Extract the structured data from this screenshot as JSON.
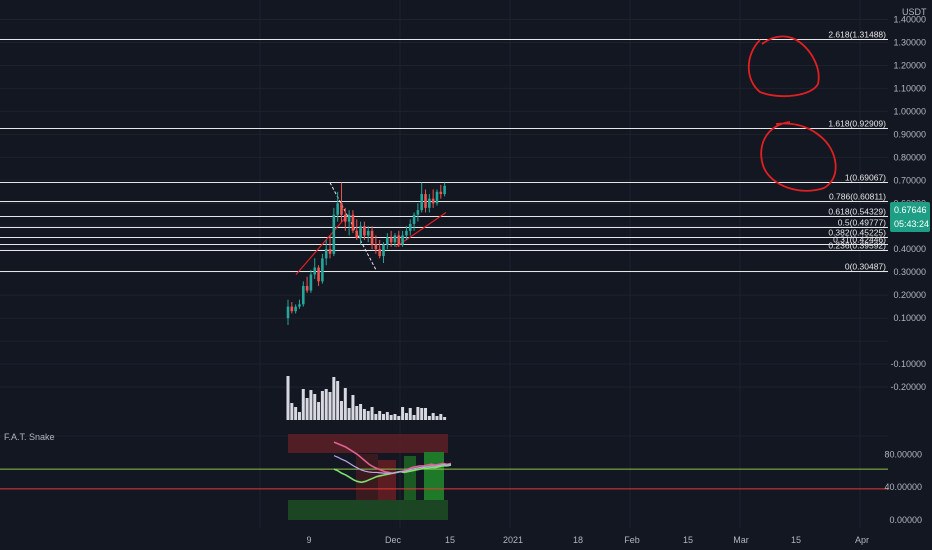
{
  "colors": {
    "background": "#131722",
    "grid": "#1e222d",
    "text": "#b2b5be",
    "fib_line": "#e6e6e6",
    "candle_up": "#26a69a",
    "candle_down": "#ef5350",
    "volume": "#d8d8e0",
    "price_tag": "#1f9e86",
    "annotation": "#e02020",
    "snake_top_zone": "#5a1f26",
    "snake_bottom_zone": "#1d4a24",
    "level_green": "#8bc34a",
    "level_red": "#e53935"
  },
  "header": {
    "currency": "USDT"
  },
  "price_axis": {
    "labels": [
      "1.40000",
      "1.30000",
      "1.20000",
      "1.10000",
      "1.00000",
      "0.90000",
      "0.80000",
      "0.70000",
      "0.60000",
      "0.50000",
      "0.40000",
      "0.30000",
      "0.20000",
      "0.10000",
      "-0.10000",
      "-0.20000"
    ]
  },
  "price_tag": {
    "price": "0.67646",
    "countdown": "05:43:24"
  },
  "fib_levels": [
    {
      "label": "2.618(1.31488)",
      "price": 1.31488
    },
    {
      "label": "1.618(0.92909)",
      "price": 0.92909
    },
    {
      "label": "1(0.69067)",
      "price": 0.69067
    },
    {
      "label": "0.786(0.60811)",
      "price": 0.60811
    },
    {
      "label": "0.618(0.54329)",
      "price": 0.54329
    },
    {
      "label": "0.5(0.49777)",
      "price": 0.49777
    },
    {
      "label": "0.382(0.45225)",
      "price": 0.45225
    },
    {
      "label": "0.31(0.42446)",
      "price": 0.42446
    },
    {
      "label": "0.236(0.39592)",
      "price": 0.39592
    },
    {
      "label": "0(0.30487)",
      "price": 0.30487
    }
  ],
  "indicator": {
    "name": "F.A.T. Snake",
    "axis_labels": [
      "80.00000",
      "40.00000",
      "0.00000"
    ],
    "levels": [
      {
        "value": 62,
        "color": "green"
      },
      {
        "value": 38,
        "color": "red"
      }
    ]
  },
  "time_axis": {
    "labels": [
      "9",
      "Dec",
      "15",
      "2021",
      "18",
      "Feb",
      "15",
      "Mar",
      "15",
      "Apr"
    ]
  },
  "chart_data": {
    "type": "candlestick",
    "price_unit": "USDT",
    "candles": [
      [
        0.1,
        0.18,
        0.07,
        0.15
      ],
      [
        0.15,
        0.17,
        0.12,
        0.13
      ],
      [
        0.13,
        0.16,
        0.12,
        0.15
      ],
      [
        0.15,
        0.18,
        0.14,
        0.16
      ],
      [
        0.16,
        0.26,
        0.15,
        0.24
      ],
      [
        0.24,
        0.28,
        0.21,
        0.22
      ],
      [
        0.22,
        0.31,
        0.21,
        0.29
      ],
      [
        0.29,
        0.36,
        0.27,
        0.32
      ],
      [
        0.32,
        0.33,
        0.24,
        0.26
      ],
      [
        0.26,
        0.38,
        0.25,
        0.36
      ],
      [
        0.36,
        0.44,
        0.33,
        0.4
      ],
      [
        0.4,
        0.46,
        0.36,
        0.38
      ],
      [
        0.38,
        0.58,
        0.37,
        0.55
      ],
      [
        0.55,
        0.65,
        0.52,
        0.6
      ],
      [
        0.6,
        0.69,
        0.52,
        0.55
      ],
      [
        0.55,
        0.58,
        0.48,
        0.52
      ],
      [
        0.52,
        0.57,
        0.46,
        0.55
      ],
      [
        0.55,
        0.57,
        0.47,
        0.48
      ],
      [
        0.48,
        0.53,
        0.44,
        0.45
      ],
      [
        0.45,
        0.52,
        0.42,
        0.5
      ],
      [
        0.5,
        0.52,
        0.44,
        0.46
      ],
      [
        0.46,
        0.5,
        0.43,
        0.48
      ],
      [
        0.48,
        0.5,
        0.4,
        0.42
      ],
      [
        0.42,
        0.46,
        0.38,
        0.4
      ],
      [
        0.4,
        0.44,
        0.36,
        0.37
      ],
      [
        0.37,
        0.43,
        0.34,
        0.42
      ],
      [
        0.42,
        0.47,
        0.4,
        0.45
      ],
      [
        0.45,
        0.48,
        0.41,
        0.43
      ],
      [
        0.43,
        0.47,
        0.41,
        0.46
      ],
      [
        0.46,
        0.48,
        0.41,
        0.42
      ],
      [
        0.42,
        0.48,
        0.41,
        0.46
      ],
      [
        0.46,
        0.5,
        0.44,
        0.48
      ],
      [
        0.48,
        0.53,
        0.46,
        0.51
      ],
      [
        0.51,
        0.56,
        0.48,
        0.55
      ],
      [
        0.55,
        0.6,
        0.52,
        0.57
      ],
      [
        0.57,
        0.69,
        0.56,
        0.64
      ],
      [
        0.64,
        0.66,
        0.56,
        0.58
      ],
      [
        0.58,
        0.64,
        0.56,
        0.62
      ],
      [
        0.62,
        0.66,
        0.58,
        0.6
      ],
      [
        0.6,
        0.66,
        0.59,
        0.65
      ],
      [
        0.65,
        0.68,
        0.62,
        0.64
      ],
      [
        0.64,
        0.69,
        0.63,
        0.676
      ]
    ],
    "volumes": [
      44,
      17,
      13,
      8,
      31,
      22,
      30,
      26,
      18,
      29,
      31,
      28,
      43,
      39,
      19,
      32,
      12,
      25,
      14,
      16,
      11,
      9,
      13,
      6,
      9,
      6,
      8,
      5,
      6,
      4,
      13,
      7,
      12,
      5,
      13,
      12,
      12,
      4,
      7,
      4,
      6,
      3
    ],
    "indicator_band_upper": [
      95,
      93,
      91,
      89,
      86,
      83,
      80,
      76,
      72,
      68,
      65,
      63,
      61,
      59,
      58,
      57,
      58,
      59,
      60,
      62,
      64,
      65,
      66,
      66,
      67,
      68,
      67,
      68,
      69,
      68,
      69
    ],
    "indicator_band_lower": [
      62,
      60,
      57,
      55,
      52,
      49,
      47,
      46,
      47,
      49,
      51,
      53,
      54,
      55,
      56,
      57,
      58,
      59,
      58,
      59,
      60,
      61,
      62,
      63,
      63,
      64,
      64,
      65,
      66,
      66,
      67
    ]
  }
}
